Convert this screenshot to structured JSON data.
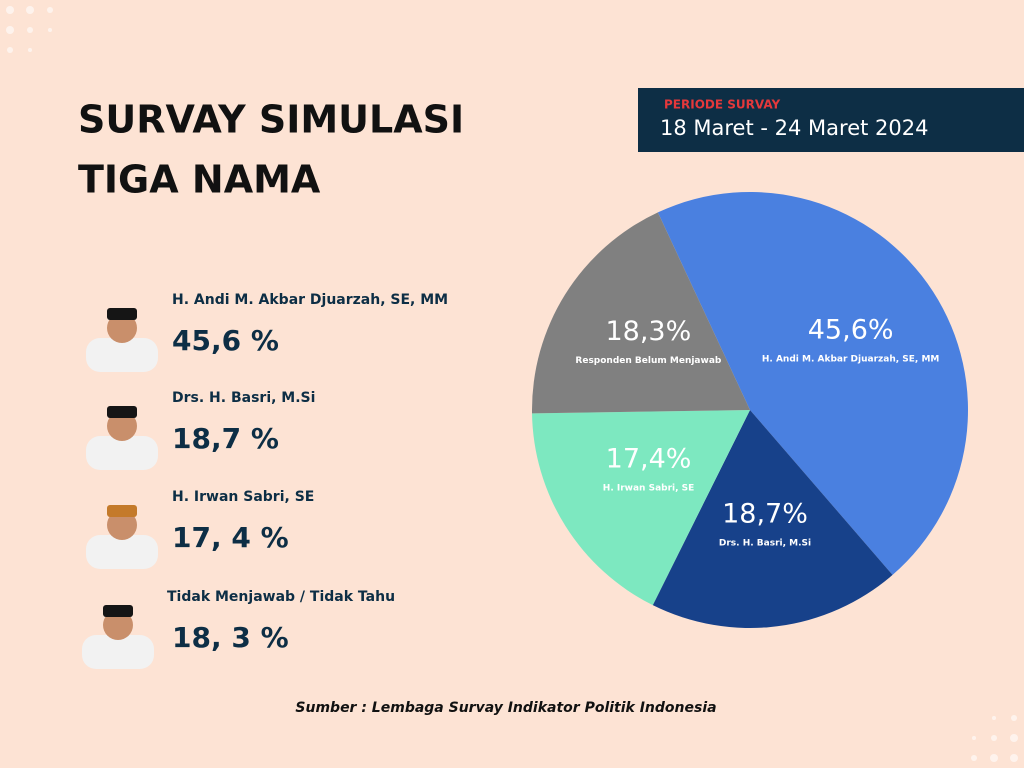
{
  "chart_data": {
    "type": "pie",
    "title": [
      "SURVAY SIMULASI",
      "TIGA NAMA"
    ],
    "categories": [
      "H. Andi M. Akbar Djuarzah, SE, MM",
      "Drs. H. Basri, M.Si",
      "H. Irwan Sabri, SE",
      "Responden Belum Menjawab"
    ],
    "values": [
      45.6,
      18.7,
      17.4,
      18.3
    ],
    "value_labels": [
      "45,6%",
      "18,7%",
      "17,4%",
      "18,3%"
    ],
    "colors": [
      "#4a80e0",
      "#17418a",
      "#7de8c0",
      "#808080"
    ]
  },
  "period": {
    "label": "PERIODE SURVAY",
    "dates": "18 Maret - 24 Maret 2024"
  },
  "candidates": [
    {
      "name": "H. Andi M. Akbar Djuarzah, SE, MM",
      "value": "45,6 %"
    },
    {
      "name": "Drs. H. Basri, M.Si",
      "value": "18,7 %"
    },
    {
      "name": "H. Irwan Sabri, SE",
      "value": "17, 4 %"
    },
    {
      "name": "Tidak Menjawab / Tidak Tahu",
      "value": "18, 3 %"
    }
  ],
  "source": "Sumber : Lembaga Survay Indikator Politik Indonesia"
}
